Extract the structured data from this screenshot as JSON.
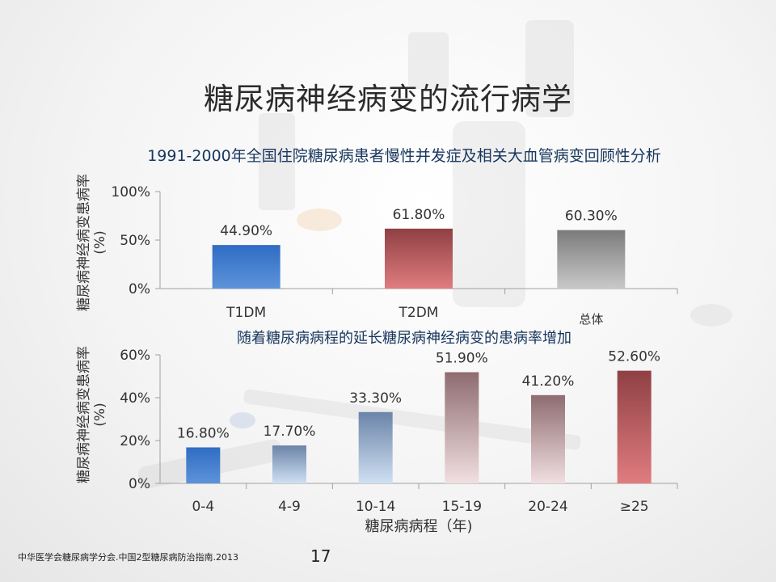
{
  "slide": {
    "title": "糖尿病神经病变的流行病学",
    "source": "中华医学会糖尿病学分会.中国2型糖尿病防治指南.2013",
    "page_number": "17"
  },
  "colors": {
    "blue_top": "#2f6cc4",
    "blue_bottom": "#5d93d9",
    "red_top": "#8f4043",
    "red_bottom": "#e07c80",
    "gray_top": "#7b7b7b",
    "gray_bottom": "#c9c9c9",
    "light_blue_top": "#6b84a8",
    "light_blue_bottom": "#cfe0f3",
    "mauve_top": "#8e6c70",
    "mauve_bottom": "#f1dfe1"
  },
  "chart_data": [
    {
      "type": "bar",
      "title": "1991-2000年全国住院糖尿病患者慢性并发症及相关大血管病变回顾性分析",
      "ylabel_line1": "糖尿病神经病变患病率",
      "ylabel_line2": "(%)",
      "categories": [
        "T1DM",
        "T2DM",
        "总体"
      ],
      "values": [
        44.9,
        61.8,
        60.3
      ],
      "value_labels": [
        "44.90%",
        "61.80%",
        "60.30%"
      ],
      "ylim": [
        0,
        100
      ],
      "yticks": [
        "0%",
        "50%",
        "100%"
      ],
      "ytick_values": [
        0,
        50,
        100
      ],
      "bar_styles": [
        "blue",
        "red",
        "gray"
      ]
    },
    {
      "type": "bar",
      "title": "随着糖尿病病程的延长糖尿病神经病变的患病率增加",
      "ylabel_line1": "糖尿病神经病变患病率",
      "ylabel_line2": "(%)",
      "xlabel": "糖尿病病程（年)",
      "categories": [
        "0-4",
        "4-9",
        "10-14",
        "15-19",
        "20-24",
        "≥25"
      ],
      "values": [
        16.8,
        17.7,
        33.3,
        51.9,
        41.2,
        52.6
      ],
      "value_labels": [
        "16.80%",
        "17.70%",
        "33.30%",
        "51.90%",
        "41.20%",
        "52.60%"
      ],
      "ylim": [
        0,
        60
      ],
      "yticks": [
        "0%",
        "20%",
        "40%",
        "60%"
      ],
      "ytick_values": [
        0,
        20,
        40,
        60
      ],
      "bar_styles": [
        "blue",
        "light_blue",
        "light_blue",
        "mauve",
        "mauve",
        "red"
      ]
    }
  ]
}
